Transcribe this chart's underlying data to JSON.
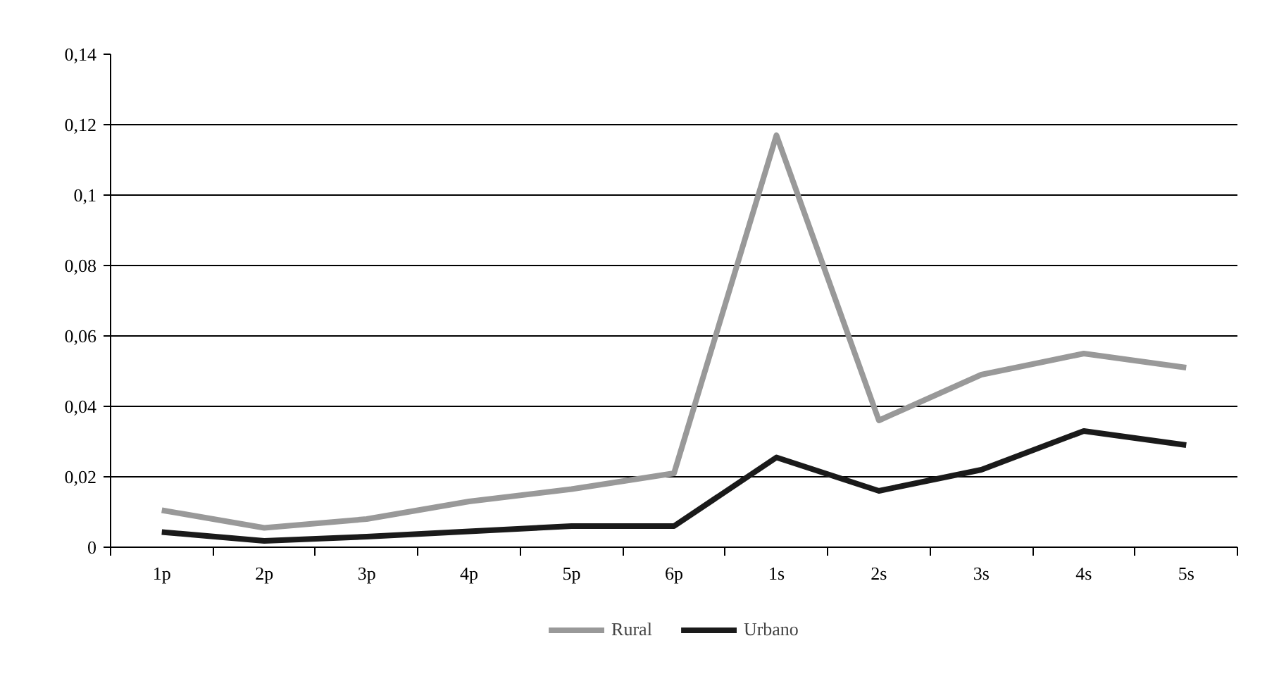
{
  "chart_data": {
    "type": "line",
    "categories": [
      "1p",
      "2p",
      "3p",
      "4p",
      "5p",
      "6p",
      "1s",
      "2s",
      "3s",
      "4s",
      "5s"
    ],
    "series": [
      {
        "name": "Rural",
        "color": "#999999",
        "values": [
          0.0105,
          0.0055,
          0.008,
          0.013,
          0.0165,
          0.021,
          0.117,
          0.036,
          0.049,
          0.055,
          0.051
        ]
      },
      {
        "name": "Urbano",
        "color": "#1a1a1a",
        "values": [
          0.0043,
          0.0018,
          0.003,
          0.0045,
          0.006,
          0.006,
          0.0255,
          0.016,
          0.022,
          0.033,
          0.029
        ]
      }
    ],
    "ylim": [
      0,
      0.14
    ],
    "yticks": [
      0,
      {
        "value": 0.02,
        "label": "0,02"
      },
      {
        "value": 0.04,
        "label": "0,04"
      },
      {
        "value": 0.06,
        "label": "0,06"
      },
      {
        "value": 0.08,
        "label": "0,08"
      },
      {
        "value": 0.1,
        "label": "0,1"
      },
      {
        "value": 0.12,
        "label": "0,12"
      },
      {
        "value": 0.14,
        "label": "0,14"
      }
    ],
    "grid": "y",
    "legend": "bottom",
    "marker": "none",
    "line_style": "solid"
  }
}
